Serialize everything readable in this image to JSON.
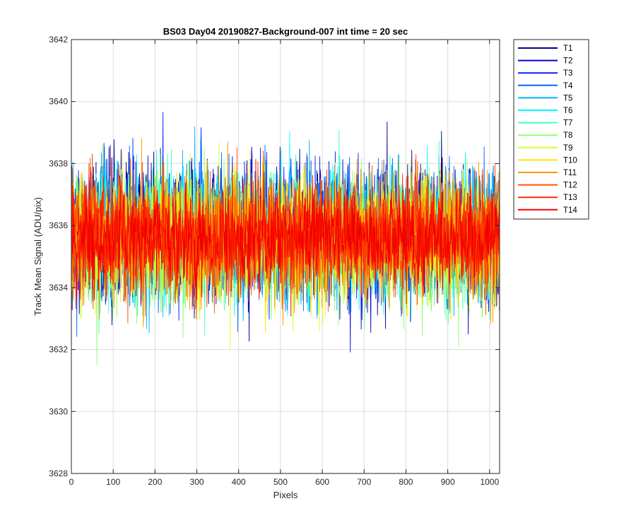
{
  "chart_data": {
    "type": "line",
    "title": "BS03 Day04 20190827-Background-007 int time = 20 sec",
    "xlabel": "Pixels",
    "ylabel": "Track Mean Signal (ADU/pix)",
    "xlim": [
      0,
      1024
    ],
    "ylim": [
      3628,
      3642
    ],
    "xticks": [
      0,
      100,
      200,
      300,
      400,
      500,
      600,
      700,
      800,
      900,
      1000
    ],
    "yticks": [
      3628,
      3630,
      3632,
      3634,
      3636,
      3638,
      3640,
      3642
    ],
    "grid": true,
    "legend_position": "outside-top-right",
    "x": {
      "start": 1,
      "end": 1024,
      "step": 1
    },
    "series_summary": "Per-pixel values are noise; each track fluctuates roughly between 3631 and 3640.5 around a mean near 3635.7 ADU/pix",
    "series": [
      {
        "name": "T1",
        "color": "#00008f",
        "mean": 3635.8,
        "sigma": 1.05
      },
      {
        "name": "T2",
        "color": "#0000d8",
        "mean": 3635.8,
        "sigma": 1.05
      },
      {
        "name": "T3",
        "color": "#0022ff",
        "mean": 3635.8,
        "sigma": 1.0
      },
      {
        "name": "T4",
        "color": "#006aff",
        "mean": 3635.7,
        "sigma": 1.0
      },
      {
        "name": "T5",
        "color": "#00b2ff",
        "mean": 3635.7,
        "sigma": 1.0
      },
      {
        "name": "T6",
        "color": "#00fbff",
        "mean": 3635.7,
        "sigma": 1.0
      },
      {
        "name": "T7",
        "color": "#44ffbb",
        "mean": 3635.6,
        "sigma": 1.0
      },
      {
        "name": "T8",
        "color": "#8cff72",
        "mean": 3635.4,
        "sigma": 1.05
      },
      {
        "name": "T9",
        "color": "#d5ff29",
        "mean": 3635.5,
        "sigma": 1.0
      },
      {
        "name": "T10",
        "color": "#ffe100",
        "mean": 3635.7,
        "sigma": 0.95
      },
      {
        "name": "T11",
        "color": "#ff9800",
        "mean": 3635.6,
        "sigma": 0.95
      },
      {
        "name": "T12",
        "color": "#ff5000",
        "mean": 3635.6,
        "sigma": 0.95
      },
      {
        "name": "T13",
        "color": "#ff2a00",
        "mean": 3635.6,
        "sigma": 0.85
      },
      {
        "name": "T14",
        "color": "#f20000",
        "mean": 3635.6,
        "sigma": 0.8
      }
    ]
  }
}
